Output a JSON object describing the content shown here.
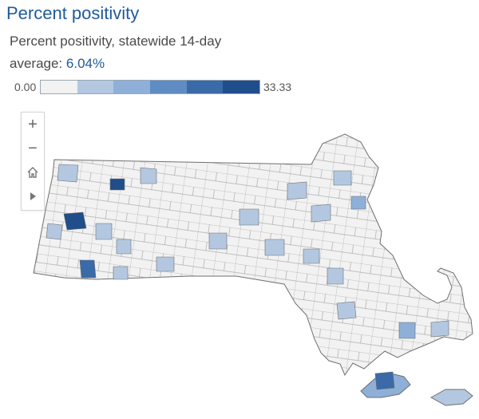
{
  "header": {
    "title": "Percent positivity",
    "subtitle_line1": "Percent positivity, statewide 14-day",
    "subtitle_prefix": "average: ",
    "subtitle_value": "6.04%"
  },
  "legend": {
    "min_label": "0.00",
    "max_label": "33.33",
    "colors": [
      "#f2f2f2",
      "#b3c8e0",
      "#8eb0d8",
      "#5f8cc2",
      "#3a6aa8",
      "#1f4e8a"
    ]
  },
  "controls": {
    "zoom_in_icon": "plus-icon",
    "zoom_out_icon": "minus-icon",
    "home_icon": "home-icon",
    "play_icon": "play-icon"
  },
  "map": {
    "region": "Massachusetts",
    "unit": "town",
    "colors": {
      "stroke": "#6e6e6e",
      "fill_lowest": "#f2f2f2",
      "fill_low": "#b3c8e0",
      "fill_mid": "#8eb0d8",
      "fill_high": "#3a6aa8",
      "fill_highest": "#1f4e8a"
    }
  }
}
